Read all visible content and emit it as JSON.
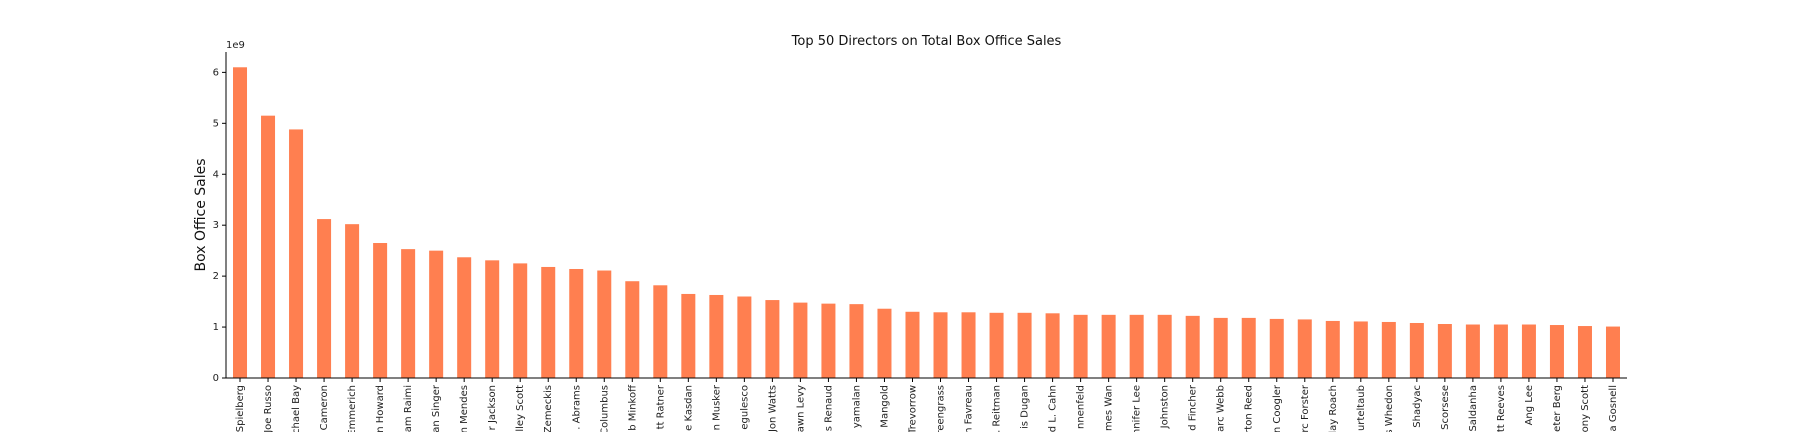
{
  "chart_data": {
    "type": "bar",
    "title": "Top 50 Directors on Total Box Office Sales",
    "xlabel": "",
    "ylabel": "Box Office Sales",
    "scale_label": "1e9",
    "ylim": [
      0,
      6.4
    ],
    "yticks": [
      0,
      1,
      2,
      3,
      4,
      5,
      6
    ],
    "grid": false,
    "bar_color": "#ff7f50",
    "categories": [
      "Spielberg",
      "Joe Russo",
      "Michael Bay",
      "Cameron",
      "Emmerich",
      "n Howard",
      "am Raimi",
      "an Singer",
      "n Mendes",
      "r Jackson",
      "lley Scott",
      "Zemeckis",
      ". Abrams",
      "Columbus",
      "b Minkoff",
      "tt Ratner",
      "e Kasdan",
      "n Musker",
      "egulesco",
      "Jon Watts",
      "awn Levy",
      "s Renaud",
      "yamalan",
      "Mangold",
      "Trevorrow",
      "reengrass",
      "n Favreau",
      ". Reitman",
      "is Dugan",
      "d L. Cahn",
      "nnenfeld",
      "mes Wan",
      "nnifer Lee",
      "Johnston",
      "d Fincher",
      "arc Webb",
      "rton Reed",
      "n Coogler",
      "rc Forster",
      "lay Roach",
      "urteltaub",
      "s Whedon",
      "Shadyac",
      "Scorsese",
      "Saldanha",
      "tt Reeves",
      "Ang Lee",
      "eter Berg",
      "ony Scott",
      "a Gosnell"
    ],
    "values": [
      6.1,
      5.15,
      4.88,
      3.12,
      3.02,
      2.65,
      2.53,
      2.5,
      2.37,
      2.31,
      2.25,
      2.18,
      2.14,
      2.11,
      1.9,
      1.82,
      1.65,
      1.63,
      1.6,
      1.53,
      1.48,
      1.46,
      1.45,
      1.36,
      1.3,
      1.29,
      1.29,
      1.28,
      1.28,
      1.27,
      1.24,
      1.24,
      1.24,
      1.24,
      1.22,
      1.18,
      1.18,
      1.16,
      1.15,
      1.12,
      1.11,
      1.1,
      1.08,
      1.06,
      1.05,
      1.05,
      1.05,
      1.04,
      1.02,
      1.01
    ]
  }
}
